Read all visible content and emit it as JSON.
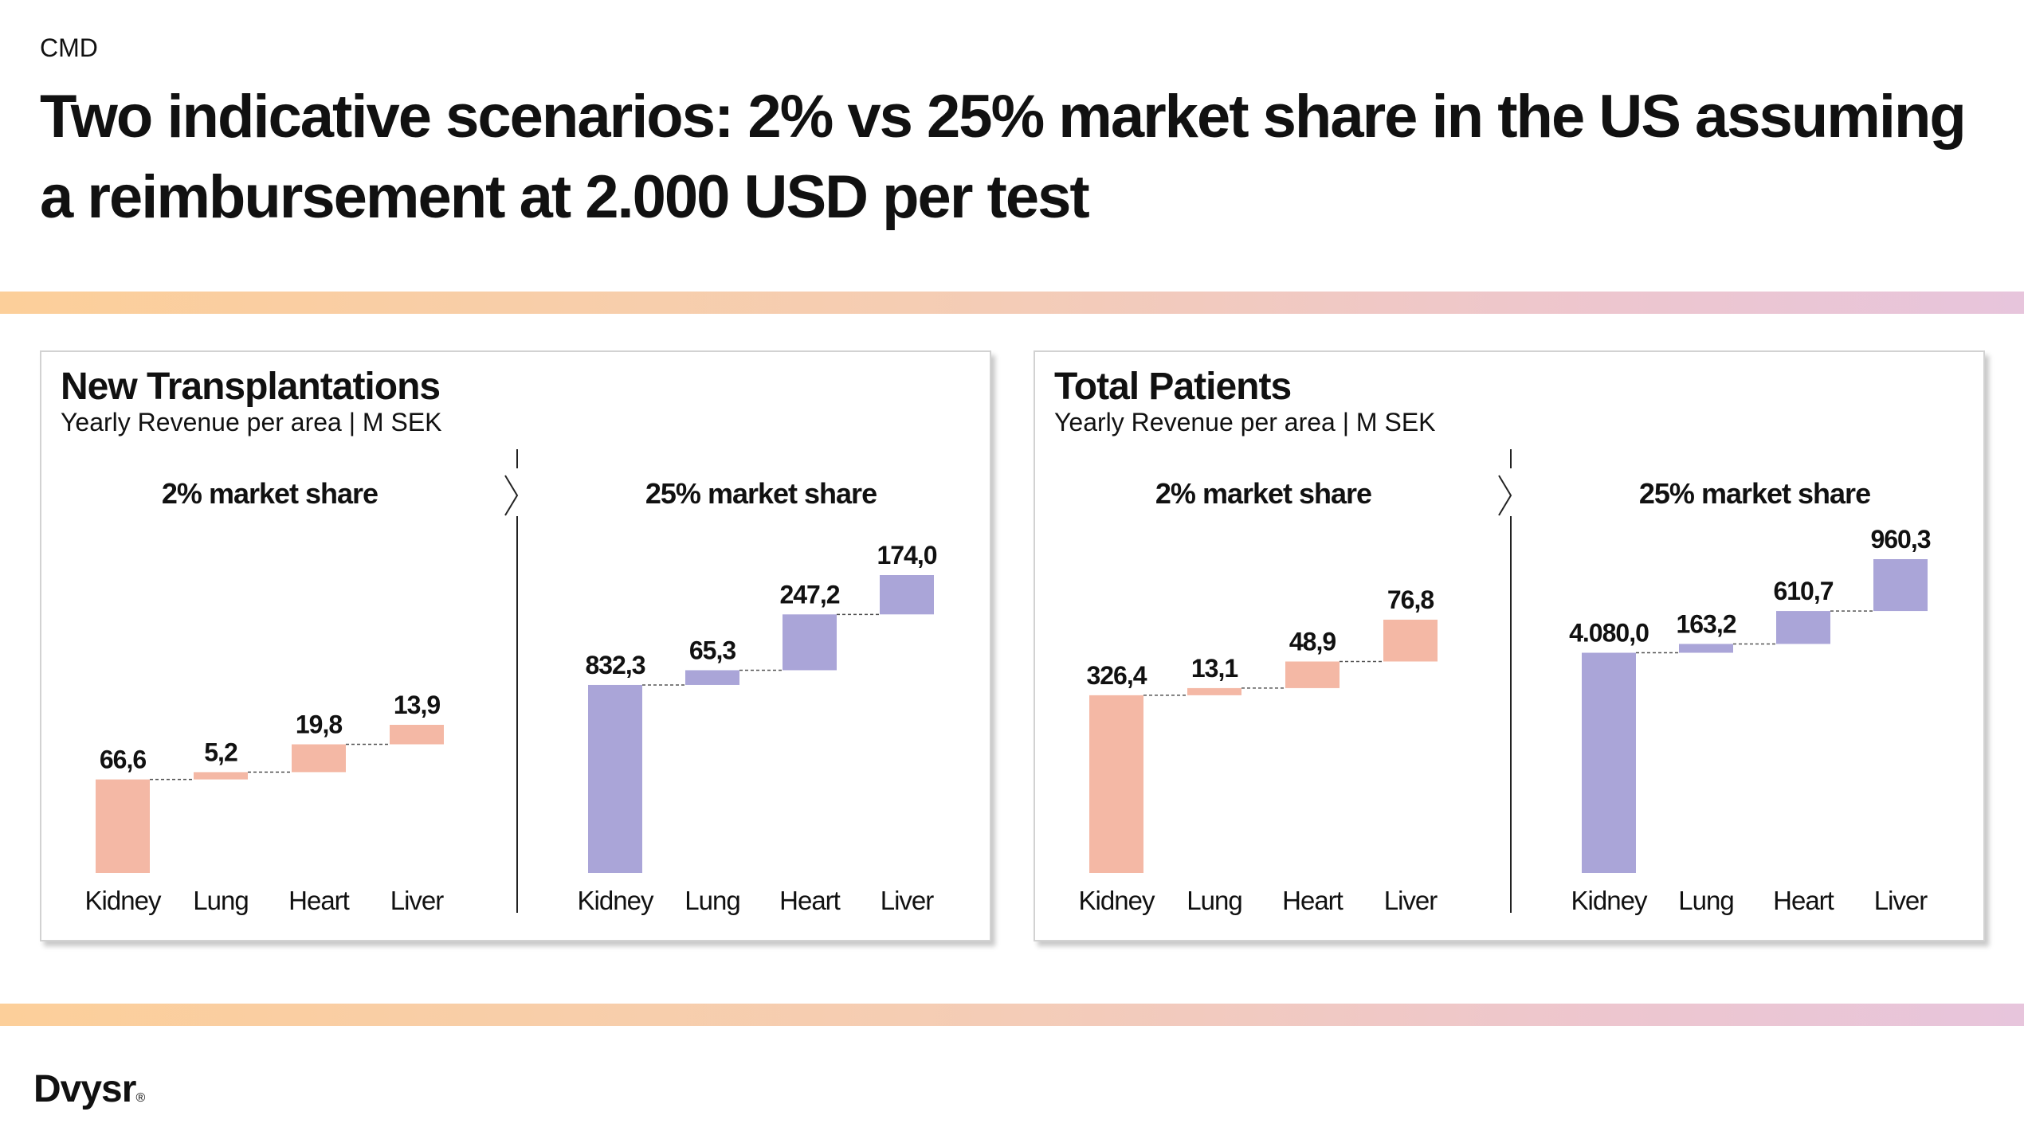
{
  "header": {
    "tag": "CMD",
    "title": "Two indicative scenarios: 2% vs 25% market share in the US assuming a reimbursement at 2.000 USD per test"
  },
  "brand": {
    "name": "Dvysr",
    "mark": "®"
  },
  "colors": {
    "low_share": "#f4b8a5",
    "high_share": "#aaa5d8",
    "connector": "#555555",
    "divider": "#222222"
  },
  "panels": [
    {
      "title": "New Transplantations",
      "subtitle": "Yearly Revenue per area | M SEK"
    },
    {
      "title": "Total Patients",
      "subtitle": "Yearly Revenue per area | M SEK"
    }
  ],
  "chart_data": [
    {
      "type": "bar",
      "subtype": "waterfall",
      "panel": "New Transplantations",
      "title": "2% market share",
      "unit": "M SEK",
      "color": "#f4b8a5",
      "categories": [
        "Kidney",
        "Lung",
        "Heart",
        "Liver"
      ],
      "values": [
        66.6,
        5.2,
        19.8,
        13.9
      ],
      "labels": [
        "66,6",
        "5,2",
        "19,8",
        "13,9"
      ]
    },
    {
      "type": "bar",
      "subtype": "waterfall",
      "panel": "New Transplantations",
      "title": "25% market share",
      "unit": "M SEK",
      "color": "#aaa5d8",
      "categories": [
        "Kidney",
        "Lung",
        "Heart",
        "Liver"
      ],
      "values": [
        832.3,
        65.3,
        247.2,
        174.0
      ],
      "labels": [
        "832,3",
        "65,3",
        "247,2",
        "174,0"
      ]
    },
    {
      "type": "bar",
      "subtype": "waterfall",
      "panel": "Total Patients",
      "title": "2% market share",
      "unit": "M SEK",
      "color": "#f4b8a5",
      "categories": [
        "Kidney",
        "Lung",
        "Heart",
        "Liver"
      ],
      "values": [
        326.4,
        13.1,
        48.9,
        76.8
      ],
      "labels": [
        "326,4",
        "13,1",
        "48,9",
        "76,8"
      ]
    },
    {
      "type": "bar",
      "subtype": "waterfall",
      "panel": "Total Patients",
      "title": "25% market share",
      "unit": "M SEK",
      "color": "#aaa5d8",
      "categories": [
        "Kidney",
        "Lung",
        "Heart",
        "Liver"
      ],
      "values": [
        4080.0,
        163.2,
        610.7,
        960.3
      ],
      "labels": [
        "4.080,0",
        "163,2",
        "610,7",
        "960,3"
      ]
    }
  ]
}
